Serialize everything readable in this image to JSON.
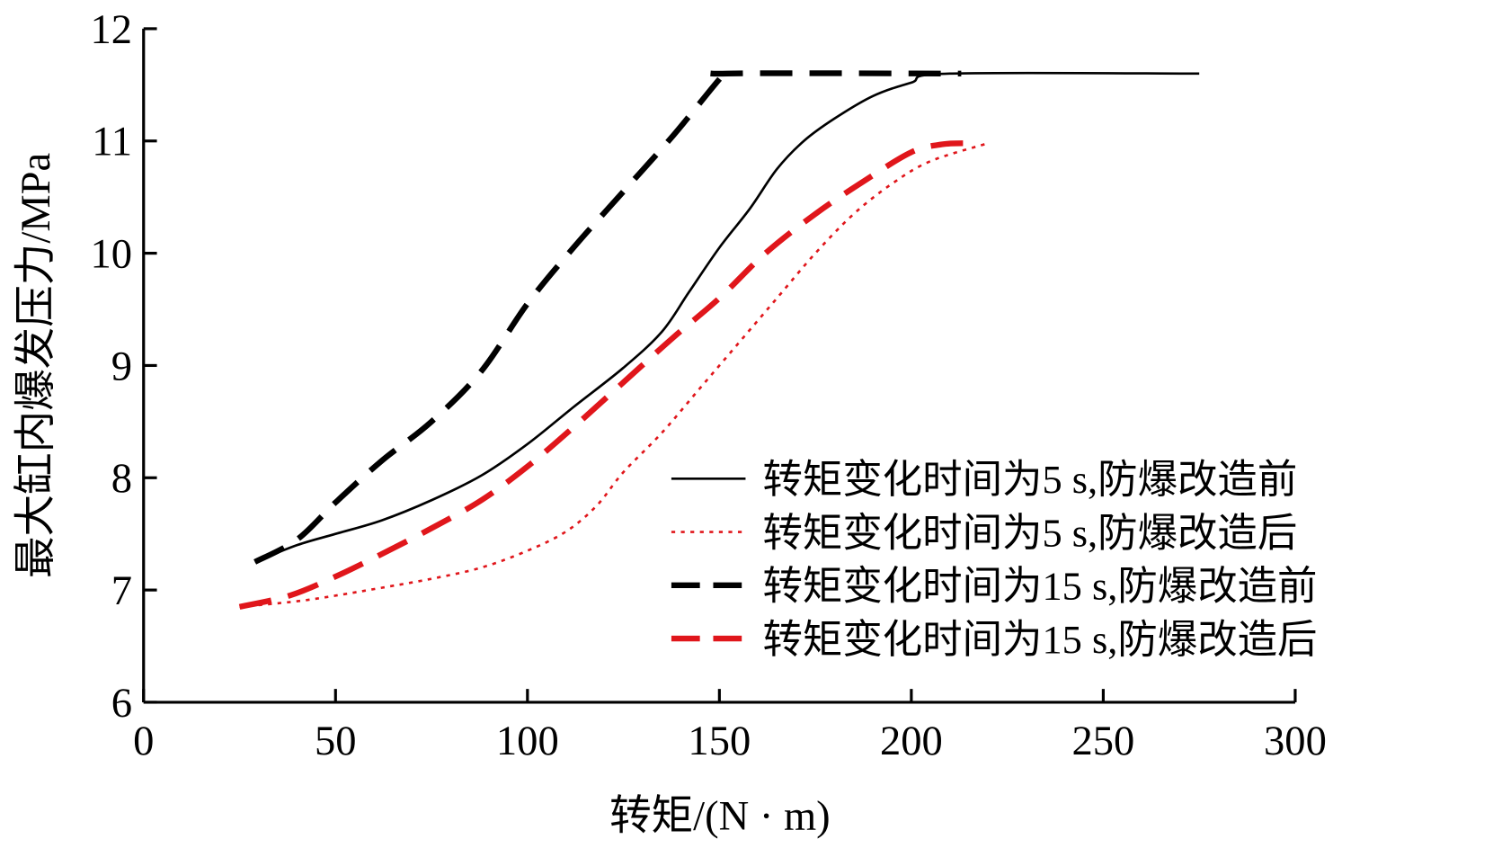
{
  "chart_data": {
    "type": "line",
    "title": "",
    "xlabel": "转矩/(N · m)",
    "ylabel": "最大缸内爆发压力/MPa",
    "xlim": [
      0,
      300
    ],
    "ylim": [
      6,
      12
    ],
    "xticks": [
      "0",
      "50",
      "100",
      "150",
      "200",
      "250",
      "300"
    ],
    "yticks": [
      "6",
      "7",
      "8",
      "9",
      "10",
      "11",
      "12"
    ],
    "grid": false,
    "legend_position": "bottom-right",
    "series": [
      {
        "name": "转矩变化时间为5 s,防爆改造前",
        "color": "#000000",
        "style": "solid",
        "x": [
          29,
          40,
          50,
          62,
          75,
          88,
          100,
          112,
          125,
          135,
          142,
          150,
          158,
          165,
          172,
          180,
          190,
          200,
          210,
          275
        ],
        "y": [
          7.25,
          7.4,
          7.5,
          7.62,
          7.8,
          8.02,
          8.3,
          8.63,
          8.98,
          9.3,
          9.65,
          10.05,
          10.4,
          10.75,
          11.0,
          11.2,
          11.4,
          11.52,
          11.6,
          11.6
        ]
      },
      {
        "name": "转矩变化时间为5 s,防爆改造后",
        "color": "#e0161b",
        "style": "dotted",
        "x": [
          25,
          40,
          50,
          62,
          75,
          88,
          100,
          110,
          118,
          125,
          135,
          145,
          155,
          165,
          175,
          185,
          195,
          205,
          220
        ],
        "y": [
          6.85,
          6.9,
          6.95,
          7.02,
          7.1,
          7.2,
          7.35,
          7.52,
          7.75,
          8.05,
          8.4,
          8.8,
          9.2,
          9.6,
          10.0,
          10.35,
          10.62,
          10.82,
          10.98
        ]
      },
      {
        "name": "转矩变化时间为15 s,防爆改造前",
        "color": "#000000",
        "style": "dashed",
        "x": [
          29,
          40,
          50,
          62,
          75,
          88,
          100,
          112,
          125,
          138,
          150,
          152,
          213
        ],
        "y": [
          7.25,
          7.45,
          7.78,
          8.15,
          8.5,
          8.95,
          9.55,
          10.05,
          10.55,
          11.05,
          11.55,
          11.6,
          11.6
        ]
      },
      {
        "name": "转矩变化时间为15 s,防爆改造后",
        "color": "#e0161b",
        "style": "dashed",
        "x": [
          25,
          38,
          50,
          62,
          75,
          88,
          100,
          112,
          125,
          138,
          150,
          162,
          175,
          188,
          200,
          208,
          215
        ],
        "y": [
          6.85,
          6.95,
          7.12,
          7.32,
          7.55,
          7.8,
          8.1,
          8.45,
          8.85,
          9.25,
          9.6,
          10.0,
          10.35,
          10.65,
          10.9,
          10.97,
          10.98
        ]
      }
    ]
  }
}
